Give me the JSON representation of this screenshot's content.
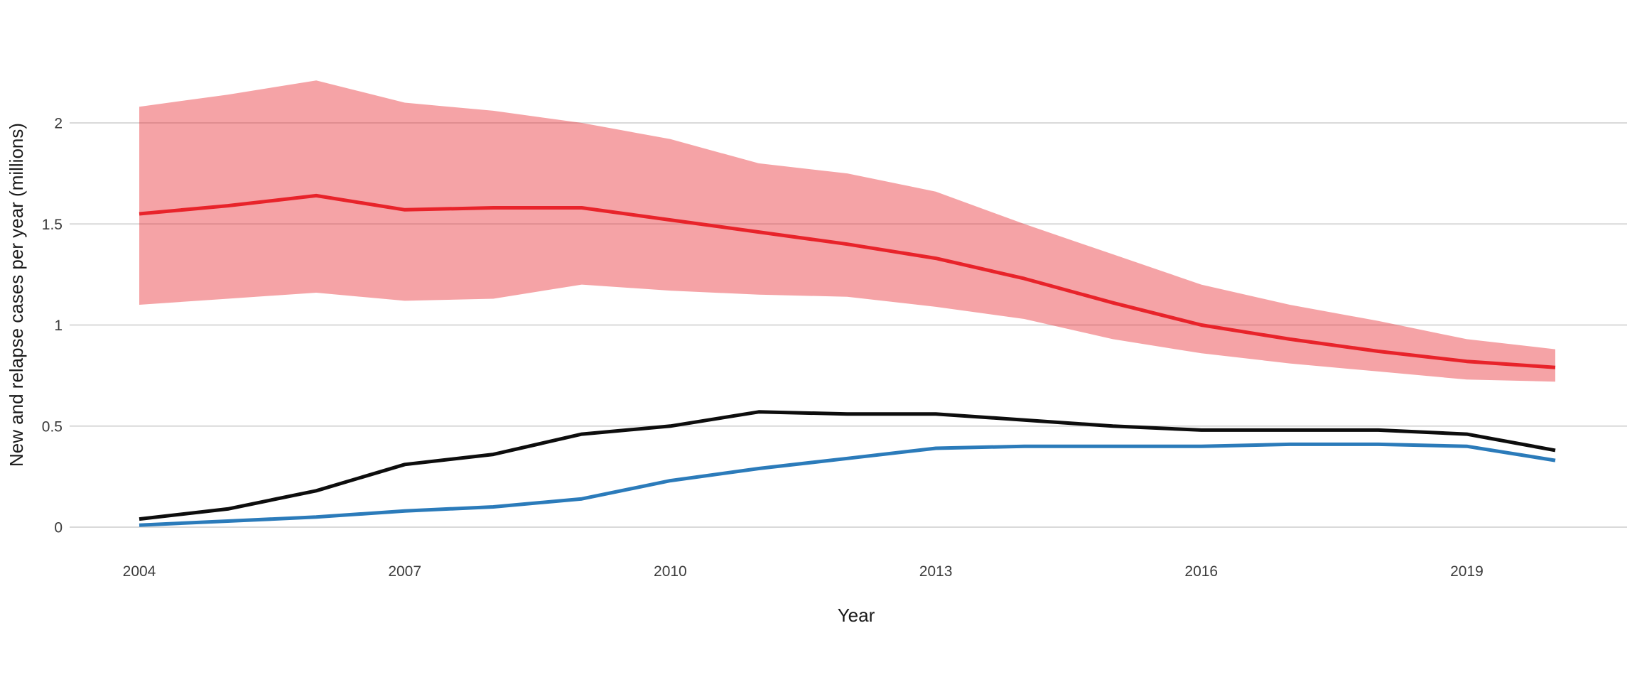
{
  "colors": {
    "background": "#ffffff",
    "gridline": "#d9d9d9",
    "red_line": "#e8232a",
    "band_fill": "#e8232a",
    "band_opacity": 0.42,
    "black_line": "#0d0d0d",
    "blue_line": "#2b7bba",
    "tick_text": "#3b3b3b",
    "axis_title_text": "#1a1a1a"
  },
  "chart_data": {
    "type": "line",
    "title": "",
    "xlabel": "Year",
    "ylabel": "New and relapse cases per year (millions)",
    "x": [
      2004,
      2005,
      2006,
      2007,
      2008,
      2009,
      2010,
      2011,
      2012,
      2013,
      2014,
      2015,
      2016,
      2017,
      2018,
      2019,
      2020
    ],
    "x_tick_labels": [
      "2004",
      "2007",
      "2010",
      "2013",
      "2016",
      "2019"
    ],
    "x_tick_values": [
      2004,
      2007,
      2010,
      2013,
      2016,
      2019
    ],
    "y_tick_labels": [
      "0",
      "0.5",
      "1",
      "1.5",
      "2"
    ],
    "y_tick_values": [
      0,
      0.5,
      1,
      1.5,
      2
    ],
    "xlim": [
      2004,
      2020
    ],
    "ylim": [
      0,
      2.35
    ],
    "grid": "horizontal-major-only",
    "legend": "none",
    "series": [
      {
        "name": "red line (estimate, with shaded uncertainty band)",
        "color_key": "red_line",
        "values": [
          1.55,
          1.59,
          1.64,
          1.57,
          1.58,
          1.58,
          1.52,
          1.46,
          1.4,
          1.33,
          1.23,
          1.11,
          1.0,
          0.93,
          0.87,
          0.82,
          0.79
        ]
      },
      {
        "name": "black line",
        "color_key": "black_line",
        "values": [
          0.04,
          0.09,
          0.18,
          0.31,
          0.36,
          0.46,
          0.5,
          0.57,
          0.56,
          0.56,
          0.53,
          0.5,
          0.48,
          0.48,
          0.48,
          0.46,
          0.38
        ]
      },
      {
        "name": "blue line",
        "color_key": "blue_line",
        "values": [
          0.01,
          0.03,
          0.05,
          0.08,
          0.1,
          0.14,
          0.23,
          0.29,
          0.34,
          0.39,
          0.4,
          0.4,
          0.4,
          0.41,
          0.41,
          0.4,
          0.33
        ]
      }
    ],
    "band": {
      "name": "uncertainty interval of red line",
      "upper": [
        2.08,
        2.14,
        2.21,
        2.1,
        2.06,
        2.0,
        1.92,
        1.8,
        1.75,
        1.66,
        1.5,
        1.35,
        1.2,
        1.1,
        1.02,
        0.93,
        0.88
      ],
      "lower": [
        1.1,
        1.13,
        1.16,
        1.12,
        1.13,
        1.2,
        1.17,
        1.15,
        1.14,
        1.09,
        1.03,
        0.93,
        0.86,
        0.81,
        0.77,
        0.73,
        0.72
      ]
    }
  }
}
